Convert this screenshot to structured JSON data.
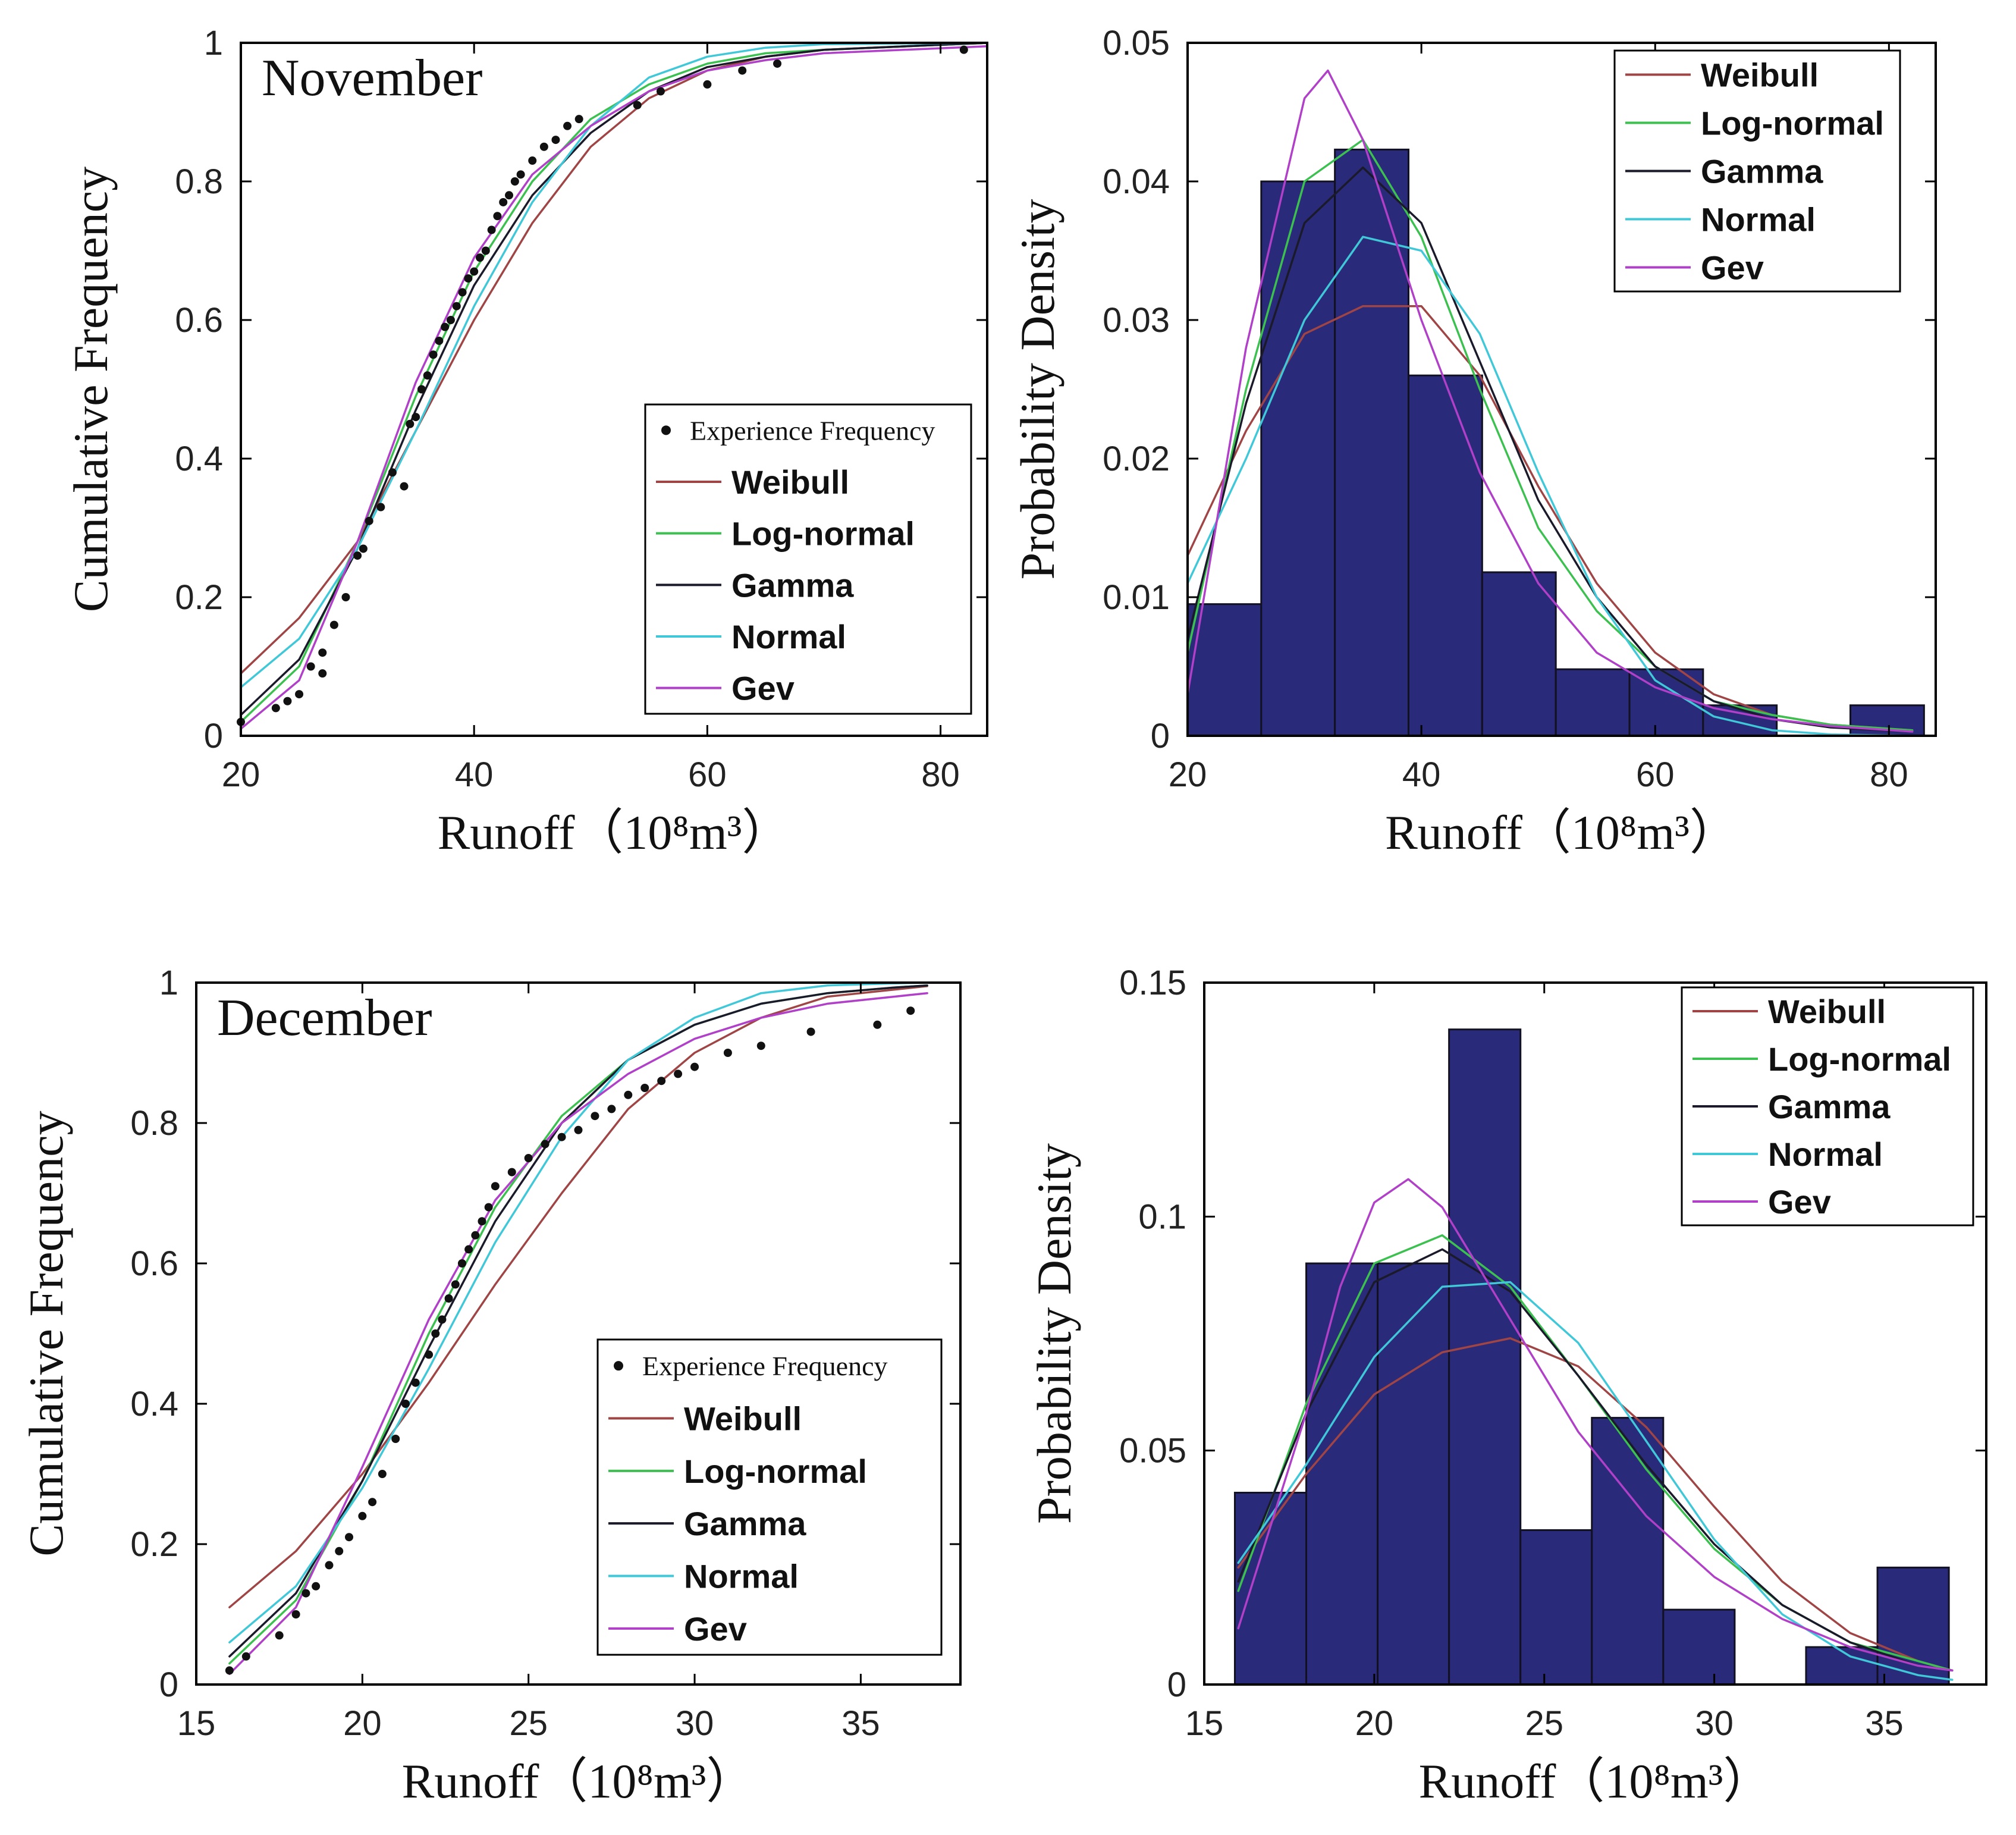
{
  "colors": {
    "weibull": "#a04545",
    "lognormal": "#3cc050",
    "gamma": "#1a1a2a",
    "normal": "#40c8d8",
    "gev": "#b040c8",
    "bar_fill": "#2a2a7a",
    "bar_edge": "#111122",
    "axis": "#000000",
    "dot": "#111111"
  },
  "chart_data": [
    {
      "id": "nov-cdf",
      "type": "line",
      "month_label": "November",
      "xlabel": "Runoff（10⁸m³）",
      "ylabel": "Cumulative Frequency",
      "xlim": [
        20,
        84
      ],
      "ylim": [
        0,
        1
      ],
      "xticks": [
        20,
        40,
        60,
        80
      ],
      "xtick_labels": [
        "20",
        "40",
        "60",
        "80"
      ],
      "yticks": [
        0,
        0.2,
        0.4,
        0.6,
        0.8,
        1
      ],
      "ytick_labels": [
        "0",
        "0.2",
        "0.4",
        "0.6",
        "0.8",
        "1"
      ],
      "legend": [
        "Experience Frequency",
        "Weibull",
        "Log-normal",
        "Gamma",
        "Normal",
        "Gev"
      ],
      "legend_position": "lower-right",
      "empirical": {
        "name": "Experience Frequency",
        "x": [
          20,
          23,
          24,
          25,
          26,
          27,
          27,
          28,
          29,
          30,
          30.5,
          31,
          32,
          33,
          34,
          34.5,
          35,
          35.5,
          36,
          36.5,
          37,
          37.5,
          38,
          38.5,
          39,
          39.5,
          40,
          40.5,
          41,
          41.5,
          42,
          42.5,
          43,
          43.5,
          44,
          45,
          46,
          47,
          48,
          49,
          54,
          56,
          60,
          63,
          66,
          82
        ],
        "y": [
          0.02,
          0.04,
          0.05,
          0.06,
          0.1,
          0.09,
          0.12,
          0.16,
          0.2,
          0.26,
          0.27,
          0.31,
          0.33,
          0.38,
          0.36,
          0.45,
          0.46,
          0.5,
          0.52,
          0.55,
          0.57,
          0.59,
          0.6,
          0.62,
          0.64,
          0.66,
          0.67,
          0.69,
          0.7,
          0.73,
          0.75,
          0.77,
          0.78,
          0.8,
          0.81,
          0.83,
          0.85,
          0.86,
          0.88,
          0.89,
          0.91,
          0.93,
          0.94,
          0.96,
          0.97,
          0.99
        ]
      },
      "series": [
        {
          "name": "Weibull",
          "x": [
            20,
            25,
            30,
            35,
            40,
            45,
            50,
            55,
            60,
            65,
            70,
            84
          ],
          "y": [
            0.09,
            0.17,
            0.28,
            0.44,
            0.6,
            0.74,
            0.85,
            0.92,
            0.96,
            0.98,
            0.99,
            1.0
          ]
        },
        {
          "name": "Log-normal",
          "x": [
            20,
            25,
            30,
            35,
            40,
            45,
            50,
            55,
            60,
            65,
            70,
            84
          ],
          "y": [
            0.02,
            0.1,
            0.28,
            0.49,
            0.67,
            0.8,
            0.89,
            0.94,
            0.97,
            0.985,
            0.99,
            1.0
          ]
        },
        {
          "name": "Gamma",
          "x": [
            20,
            25,
            30,
            35,
            40,
            45,
            50,
            55,
            60,
            65,
            70,
            84
          ],
          "y": [
            0.03,
            0.11,
            0.27,
            0.47,
            0.65,
            0.78,
            0.87,
            0.93,
            0.965,
            0.98,
            0.99,
            1.0
          ]
        },
        {
          "name": "Normal",
          "x": [
            20,
            25,
            30,
            35,
            40,
            45,
            50,
            55,
            60,
            65,
            70,
            84
          ],
          "y": [
            0.07,
            0.14,
            0.27,
            0.44,
            0.62,
            0.77,
            0.88,
            0.95,
            0.98,
            0.993,
            0.998,
            1.0
          ]
        },
        {
          "name": "Gev",
          "x": [
            20,
            25,
            30,
            35,
            40,
            45,
            50,
            55,
            60,
            65,
            70,
            84
          ],
          "y": [
            0.01,
            0.08,
            0.28,
            0.51,
            0.69,
            0.81,
            0.88,
            0.93,
            0.96,
            0.975,
            0.985,
            0.995
          ]
        }
      ]
    },
    {
      "id": "nov-pdf",
      "type": "bar",
      "xlabel": "Runoff（10⁸m³）",
      "ylabel": "Probability Density",
      "xlim": [
        20,
        84
      ],
      "ylim": [
        0,
        0.05
      ],
      "xticks": [
        20,
        40,
        60,
        80
      ],
      "xtick_labels": [
        "20",
        "40",
        "60",
        "80"
      ],
      "yticks": [
        0,
        0.01,
        0.02,
        0.03,
        0.04,
        0.05
      ],
      "ytick_labels": [
        "0",
        "0.01",
        "0.02",
        "0.03",
        "0.04",
        "0.05"
      ],
      "legend": [
        "Weibull",
        "Log-normal",
        "Gamma",
        "Normal",
        "Gev"
      ],
      "legend_position": "top-right",
      "bins": {
        "edges": [
          20,
          26.3,
          32.6,
          38.9,
          45.2,
          51.5,
          57.8,
          64.1,
          70.4,
          76.7,
          83
        ],
        "values": [
          0.0095,
          0.04,
          0.0423,
          0.026,
          0.0118,
          0.0048,
          0.0048,
          0.0022,
          0,
          0.0022
        ]
      },
      "series": [
        {
          "name": "Weibull",
          "x": [
            20,
            25,
            30,
            35,
            40,
            45,
            50,
            55,
            60,
            65,
            70,
            75,
            82
          ],
          "y": [
            0.013,
            0.022,
            0.029,
            0.031,
            0.031,
            0.026,
            0.018,
            0.011,
            0.006,
            0.003,
            0.0015,
            0.0008,
            0.0004
          ]
        },
        {
          "name": "Log-normal",
          "x": [
            20,
            25,
            30,
            35,
            40,
            45,
            50,
            55,
            60,
            65,
            70,
            75,
            82
          ],
          "y": [
            0.006,
            0.025,
            0.04,
            0.043,
            0.036,
            0.025,
            0.015,
            0.009,
            0.005,
            0.0025,
            0.0015,
            0.0008,
            0.0004
          ]
        },
        {
          "name": "Gamma",
          "x": [
            20,
            25,
            30,
            35,
            40,
            45,
            50,
            55,
            60,
            65,
            70,
            75,
            82
          ],
          "y": [
            0.007,
            0.024,
            0.037,
            0.041,
            0.037,
            0.027,
            0.017,
            0.01,
            0.005,
            0.0025,
            0.0012,
            0.0006,
            0.0003
          ]
        },
        {
          "name": "Normal",
          "x": [
            20,
            25,
            30,
            35,
            40,
            45,
            50,
            55,
            60,
            65,
            70,
            75,
            82
          ],
          "y": [
            0.011,
            0.02,
            0.03,
            0.036,
            0.035,
            0.029,
            0.019,
            0.01,
            0.004,
            0.0014,
            0.0004,
            0.0001,
            0
          ]
        },
        {
          "name": "Gev",
          "x": [
            20,
            25,
            30,
            32,
            35,
            40,
            45,
            50,
            55,
            60,
            65,
            70,
            75,
            82
          ],
          "y": [
            0.003,
            0.028,
            0.046,
            0.048,
            0.043,
            0.03,
            0.019,
            0.011,
            0.006,
            0.0035,
            0.002,
            0.0012,
            0.0007,
            0.0003
          ]
        }
      ]
    },
    {
      "id": "dec-cdf",
      "type": "line",
      "month_label": "December",
      "xlabel": "Runoff（10⁸m³）",
      "ylabel": "Cumulative Frequency",
      "xlim": [
        15,
        38
      ],
      "ylim": [
        0,
        1
      ],
      "xticks": [
        15,
        20,
        25,
        30,
        35
      ],
      "xtick_labels": [
        "15",
        "20",
        "25",
        "30",
        "35"
      ],
      "yticks": [
        0,
        0.2,
        0.4,
        0.6,
        0.8,
        1
      ],
      "ytick_labels": [
        "0",
        "0.2",
        "0.4",
        "0.6",
        "0.8",
        "1"
      ],
      "legend": [
        "Experience Frequency",
        "Weibull",
        "Log-normal",
        "Gamma",
        "Normal",
        "Gev"
      ],
      "legend_position": "lower-right",
      "empirical": {
        "name": "Experience Frequency",
        "x": [
          16,
          16.5,
          17.5,
          18,
          18.3,
          18.6,
          19,
          19.3,
          19.6,
          20,
          20.3,
          20.6,
          21,
          21.3,
          21.6,
          22,
          22.2,
          22.4,
          22.6,
          22.8,
          23,
          23.2,
          23.4,
          23.6,
          23.8,
          24,
          24.5,
          25,
          25.5,
          26,
          26.5,
          27,
          27.5,
          28,
          28.5,
          29,
          29.5,
          30,
          31,
          32,
          33.5,
          35.5,
          36.5
        ],
        "y": [
          0.02,
          0.04,
          0.07,
          0.1,
          0.13,
          0.14,
          0.17,
          0.19,
          0.21,
          0.24,
          0.26,
          0.3,
          0.35,
          0.4,
          0.43,
          0.47,
          0.5,
          0.52,
          0.55,
          0.57,
          0.6,
          0.62,
          0.64,
          0.66,
          0.68,
          0.71,
          0.73,
          0.75,
          0.77,
          0.78,
          0.79,
          0.81,
          0.82,
          0.84,
          0.85,
          0.86,
          0.87,
          0.88,
          0.9,
          0.91,
          0.93,
          0.94,
          0.96
        ]
      },
      "series": [
        {
          "name": "Weibull",
          "x": [
            16,
            18,
            20,
            22,
            24,
            26,
            28,
            30,
            32,
            34,
            36,
            37
          ],
          "y": [
            0.11,
            0.19,
            0.3,
            0.43,
            0.57,
            0.7,
            0.82,
            0.9,
            0.95,
            0.98,
            0.99,
            0.995
          ]
        },
        {
          "name": "Log-normal",
          "x": [
            16,
            18,
            20,
            22,
            24,
            26,
            28,
            30,
            32,
            34,
            36,
            37
          ],
          "y": [
            0.03,
            0.12,
            0.29,
            0.5,
            0.68,
            0.81,
            0.89,
            0.94,
            0.97,
            0.985,
            0.993,
            0.996
          ]
        },
        {
          "name": "Gamma",
          "x": [
            16,
            18,
            20,
            22,
            24,
            26,
            28,
            30,
            32,
            34,
            36,
            37
          ],
          "y": [
            0.04,
            0.13,
            0.29,
            0.48,
            0.66,
            0.8,
            0.89,
            0.94,
            0.97,
            0.985,
            0.993,
            0.996
          ]
        },
        {
          "name": "Normal",
          "x": [
            16,
            18,
            20,
            22,
            24,
            26,
            28,
            30,
            32,
            34,
            36,
            37
          ],
          "y": [
            0.06,
            0.14,
            0.28,
            0.45,
            0.63,
            0.78,
            0.89,
            0.95,
            0.985,
            0.996,
            0.999,
            1.0
          ]
        },
        {
          "name": "Gev",
          "x": [
            16,
            18,
            20,
            22,
            24,
            26,
            28,
            30,
            32,
            34,
            36,
            37
          ],
          "y": [
            0.015,
            0.11,
            0.31,
            0.52,
            0.69,
            0.8,
            0.87,
            0.92,
            0.95,
            0.97,
            0.98,
            0.985
          ]
        }
      ]
    },
    {
      "id": "dec-pdf",
      "type": "bar",
      "xlabel": "Runoff（10⁸m³）",
      "ylabel": "Probability Density",
      "xlim": [
        15,
        38
      ],
      "ylim": [
        0,
        0.15
      ],
      "xticks": [
        15,
        20,
        25,
        30,
        35
      ],
      "xtick_labels": [
        "15",
        "20",
        "25",
        "30",
        "35"
      ],
      "yticks": [
        0,
        0.05,
        0.1,
        0.15
      ],
      "ytick_labels": [
        "0",
        "0.05",
        "0.1",
        "0.15"
      ],
      "legend": [
        "Weibull",
        "Log-normal",
        "Gamma",
        "Normal",
        "Gev"
      ],
      "legend_position": "top-right",
      "bins": {
        "edges": [
          15.9,
          18,
          20.1,
          22.2,
          24.3,
          26.4,
          28.5,
          30.6,
          32.7,
          34.8,
          36.9
        ],
        "values": [
          0.041,
          0.09,
          0.09,
          0.14,
          0.033,
          0.057,
          0.016,
          0,
          0.008,
          0.025
        ]
      },
      "series": [
        {
          "name": "Weibull",
          "x": [
            16,
            18,
            20,
            22,
            24,
            26,
            28,
            30,
            32,
            34,
            36,
            37
          ],
          "y": [
            0.025,
            0.045,
            0.062,
            0.071,
            0.074,
            0.068,
            0.055,
            0.038,
            0.022,
            0.011,
            0.005,
            0.003
          ]
        },
        {
          "name": "Log-normal",
          "x": [
            16,
            18,
            20,
            22,
            24,
            26,
            28,
            30,
            32,
            34,
            36,
            37
          ],
          "y": [
            0.02,
            0.06,
            0.09,
            0.096,
            0.085,
            0.066,
            0.046,
            0.029,
            0.017,
            0.009,
            0.005,
            0.003
          ]
        },
        {
          "name": "Gamma",
          "x": [
            16,
            18,
            20,
            22,
            24,
            26,
            28,
            30,
            32,
            34,
            36,
            37
          ],
          "y": [
            0.022,
            0.058,
            0.086,
            0.093,
            0.084,
            0.066,
            0.047,
            0.03,
            0.017,
            0.009,
            0.004,
            0.003
          ]
        },
        {
          "name": "Normal",
          "x": [
            16,
            18,
            20,
            22,
            24,
            26,
            28,
            30,
            32,
            34,
            36,
            37
          ],
          "y": [
            0.026,
            0.047,
            0.07,
            0.085,
            0.086,
            0.073,
            0.052,
            0.031,
            0.015,
            0.006,
            0.002,
            0.001
          ]
        },
        {
          "name": "Gev",
          "x": [
            16,
            18,
            19,
            20,
            21,
            22,
            24,
            26,
            28,
            30,
            32,
            34,
            36,
            37
          ],
          "y": [
            0.012,
            0.058,
            0.085,
            0.103,
            0.108,
            0.102,
            0.078,
            0.054,
            0.036,
            0.023,
            0.014,
            0.008,
            0.004,
            0.003
          ]
        }
      ]
    }
  ]
}
